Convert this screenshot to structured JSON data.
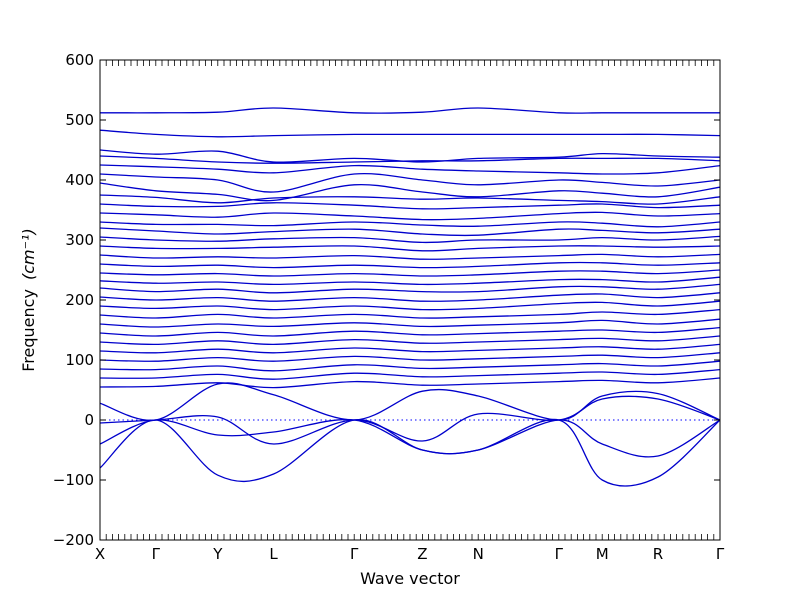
{
  "chart_data": {
    "type": "line",
    "title": "",
    "xlabel": "Wave vector",
    "ylabel": "Frequency",
    "ylabel_unit": "(cm⁻¹)",
    "ylim": [
      -200,
      600
    ],
    "yticks": [
      "600",
      "500",
      "400",
      "300",
      "200",
      "100",
      "0",
      "−100",
      "−200"
    ],
    "ytick_values": [
      600,
      500,
      400,
      300,
      200,
      100,
      0,
      -100,
      -200
    ],
    "high_symmetry_points": [
      "X",
      "Γ",
      "Y",
      "L",
      "Γ",
      "Z",
      "N",
      "Γ",
      "M",
      "R",
      "Γ"
    ],
    "x": [
      0,
      0.09,
      0.19,
      0.28,
      0.41,
      0.52,
      0.61,
      0.74,
      0.81,
      0.9,
      1.0
    ],
    "reference_line": {
      "value": 0,
      "style": "dotted"
    },
    "grid": false,
    "legend": "none",
    "line_color": "#0000cc",
    "series": [
      {
        "values": [
          512,
          512,
          513,
          520,
          512,
          513,
          520,
          512,
          512,
          512,
          512
        ]
      },
      {
        "values": [
          483,
          476,
          472,
          474,
          476,
          476,
          476,
          476,
          476,
          476,
          474
        ]
      },
      {
        "values": [
          450,
          443,
          448,
          430,
          436,
          430,
          436,
          438,
          444,
          440,
          438
        ]
      },
      {
        "values": [
          440,
          436,
          430,
          428,
          430,
          432,
          432,
          436,
          436,
          436,
          432
        ]
      },
      {
        "values": [
          425,
          422,
          418,
          412,
          424,
          418,
          415,
          412,
          410,
          412,
          424
        ]
      },
      {
        "values": [
          410,
          405,
          400,
          380,
          410,
          400,
          392,
          400,
          396,
          390,
          400
        ]
      },
      {
        "values": [
          395,
          382,
          376,
          366,
          392,
          380,
          372,
          382,
          378,
          372,
          388
        ]
      },
      {
        "values": [
          375,
          371,
          362,
          370,
          372,
          368,
          370,
          366,
          364,
          360,
          372
        ]
      },
      {
        "values": [
          360,
          356,
          356,
          362,
          358,
          352,
          354,
          358,
          360,
          354,
          358
        ]
      },
      {
        "values": [
          345,
          342,
          338,
          345,
          340,
          334,
          336,
          344,
          346,
          340,
          344
        ]
      },
      {
        "values": [
          330,
          326,
          326,
          324,
          330,
          325,
          323,
          330,
          328,
          322,
          330
        ]
      },
      {
        "values": [
          320,
          315,
          310,
          314,
          318,
          310,
          308,
          318,
          316,
          312,
          318
        ]
      },
      {
        "values": [
          305,
          300,
          298,
          302,
          304,
          296,
          300,
          300,
          304,
          300,
          306
        ]
      },
      {
        "values": [
          290,
          286,
          286,
          288,
          290,
          282,
          286,
          290,
          290,
          288,
          290
        ]
      },
      {
        "values": [
          275,
          270,
          272,
          270,
          274,
          268,
          270,
          274,
          276,
          272,
          276
        ]
      },
      {
        "values": [
          260,
          256,
          258,
          254,
          258,
          254,
          256,
          262,
          262,
          258,
          262
        ]
      },
      {
        "values": [
          245,
          242,
          244,
          240,
          244,
          240,
          242,
          248,
          248,
          244,
          250
        ]
      },
      {
        "values": [
          232,
          228,
          230,
          226,
          230,
          226,
          228,
          234,
          234,
          230,
          238
        ]
      },
      {
        "values": [
          220,
          214,
          218,
          212,
          218,
          214,
          214,
          222,
          222,
          218,
          226
        ]
      },
      {
        "values": [
          205,
          200,
          204,
          198,
          204,
          198,
          200,
          208,
          210,
          204,
          212
        ]
      },
      {
        "values": [
          190,
          186,
          190,
          184,
          190,
          184,
          186,
          194,
          196,
          190,
          198
        ]
      },
      {
        "values": [
          175,
          170,
          176,
          170,
          176,
          170,
          172,
          176,
          180,
          176,
          184
        ]
      },
      {
        "values": [
          160,
          155,
          160,
          156,
          162,
          156,
          158,
          162,
          166,
          160,
          168
        ]
      },
      {
        "values": [
          145,
          140,
          146,
          140,
          148,
          142,
          144,
          148,
          150,
          146,
          154
        ]
      },
      {
        "values": [
          130,
          126,
          132,
          126,
          134,
          128,
          130,
          134,
          136,
          132,
          140
        ]
      },
      {
        "values": [
          115,
          112,
          118,
          112,
          120,
          114,
          116,
          120,
          122,
          118,
          126
        ]
      },
      {
        "values": [
          100,
          98,
          104,
          98,
          106,
          100,
          102,
          106,
          108,
          104,
          112
        ]
      },
      {
        "values": [
          85,
          84,
          90,
          82,
          92,
          86,
          88,
          92,
          94,
          90,
          98
        ]
      },
      {
        "values": [
          70,
          70,
          76,
          68,
          78,
          72,
          74,
          78,
          80,
          76,
          84
        ]
      },
      {
        "values": [
          55,
          56,
          62,
          54,
          64,
          58,
          60,
          64,
          66,
          62,
          70
        ]
      },
      {
        "values": [
          28,
          0,
          60,
          42,
          0,
          48,
          40,
          0,
          40,
          44,
          0
        ]
      },
      {
        "values": [
          -40,
          0,
          -25,
          -20,
          0,
          -50,
          -50,
          0,
          -40,
          -60,
          0
        ]
      },
      {
        "values": [
          -80,
          0,
          -92,
          -90,
          0,
          -50,
          -50,
          0,
          -100,
          -95,
          0
        ]
      },
      {
        "values": [
          -5,
          0,
          5,
          -40,
          0,
          -35,
          10,
          0,
          35,
          35,
          0
        ]
      }
    ]
  }
}
